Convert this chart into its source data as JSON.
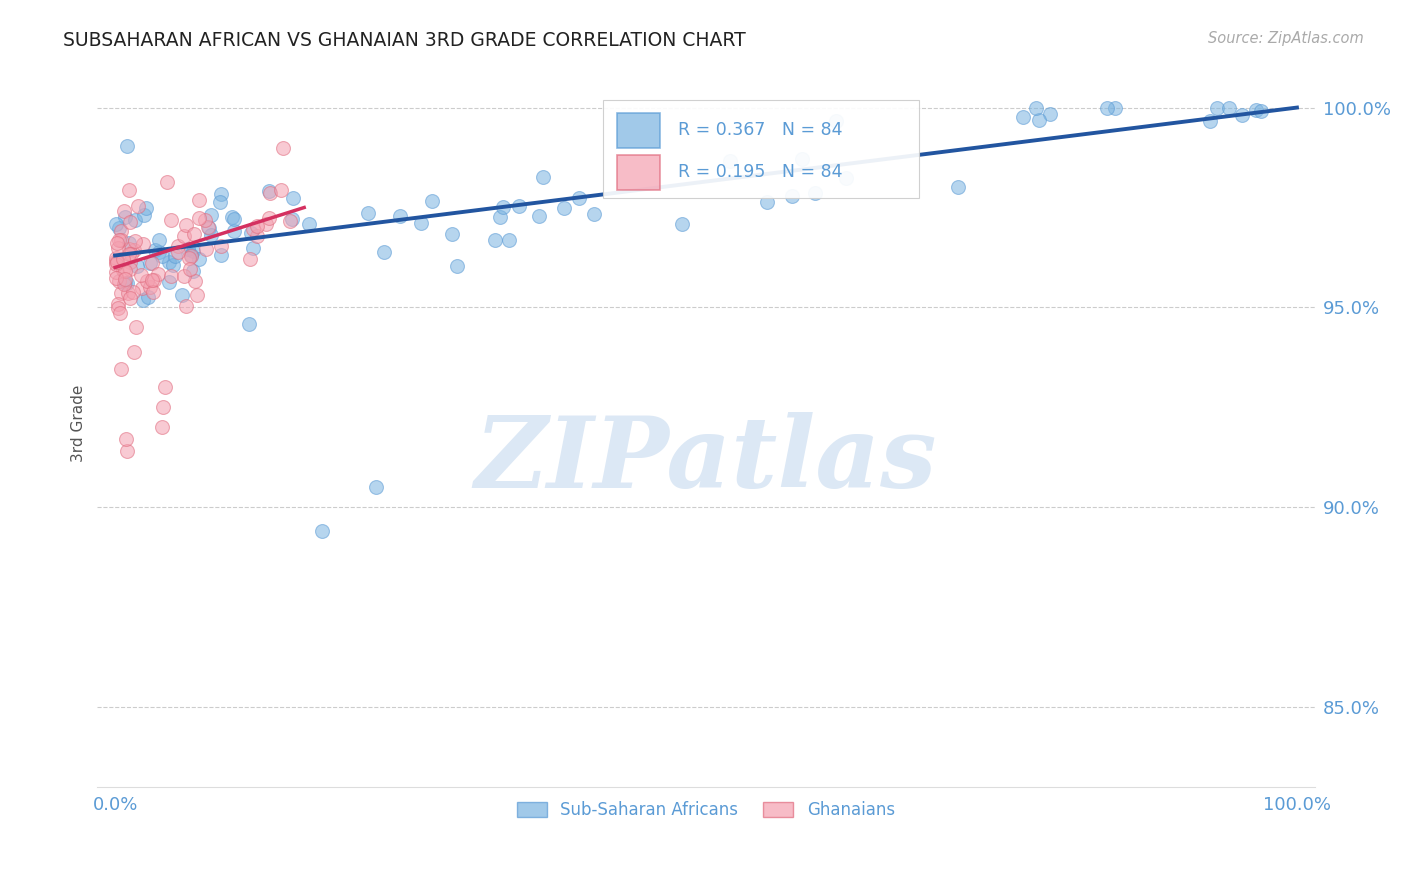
{
  "title": "SUBSAHARAN AFRICAN VS GHANAIAN 3RD GRADE CORRELATION CHART",
  "source": "Source: ZipAtlas.com",
  "ylabel": "3rd Grade",
  "legend_blue_label": "Sub-Saharan Africans",
  "legend_pink_label": "Ghanaians",
  "legend_blue_r": "R = 0.367",
  "legend_blue_n": "N = 84",
  "legend_pink_r": "R = 0.195",
  "legend_pink_n": "N = 84",
  "blue_color": "#7ab3e0",
  "blue_edge_color": "#5b9bd5",
  "pink_color": "#f4a0b0",
  "pink_edge_color": "#e06b7e",
  "blue_line_color": "#2255a0",
  "pink_line_color": "#d43060",
  "title_color": "#222222",
  "source_color": "#aaaaaa",
  "axis_tick_color": "#5b9bd5",
  "grid_color": "#cccccc",
  "watermark_text": "ZIPatlas",
  "watermark_color": "#dce8f5",
  "xlim": [
    0.0,
    1.0
  ],
  "ylim": [
    0.83,
    1.012
  ],
  "yticks": [
    0.85,
    0.9,
    0.95,
    1.0
  ],
  "ytick_labels": [
    "85.0%",
    "90.0%",
    "95.0%",
    "100.0%"
  ],
  "blue_line_x": [
    0.0,
    1.0
  ],
  "blue_line_y": [
    0.963,
    1.0
  ],
  "pink_line_x": [
    0.0,
    0.16
  ],
  "pink_line_y": [
    0.96,
    0.975
  ],
  "marker_size": 100,
  "marker_alpha": 0.55,
  "line_width": 2.8
}
